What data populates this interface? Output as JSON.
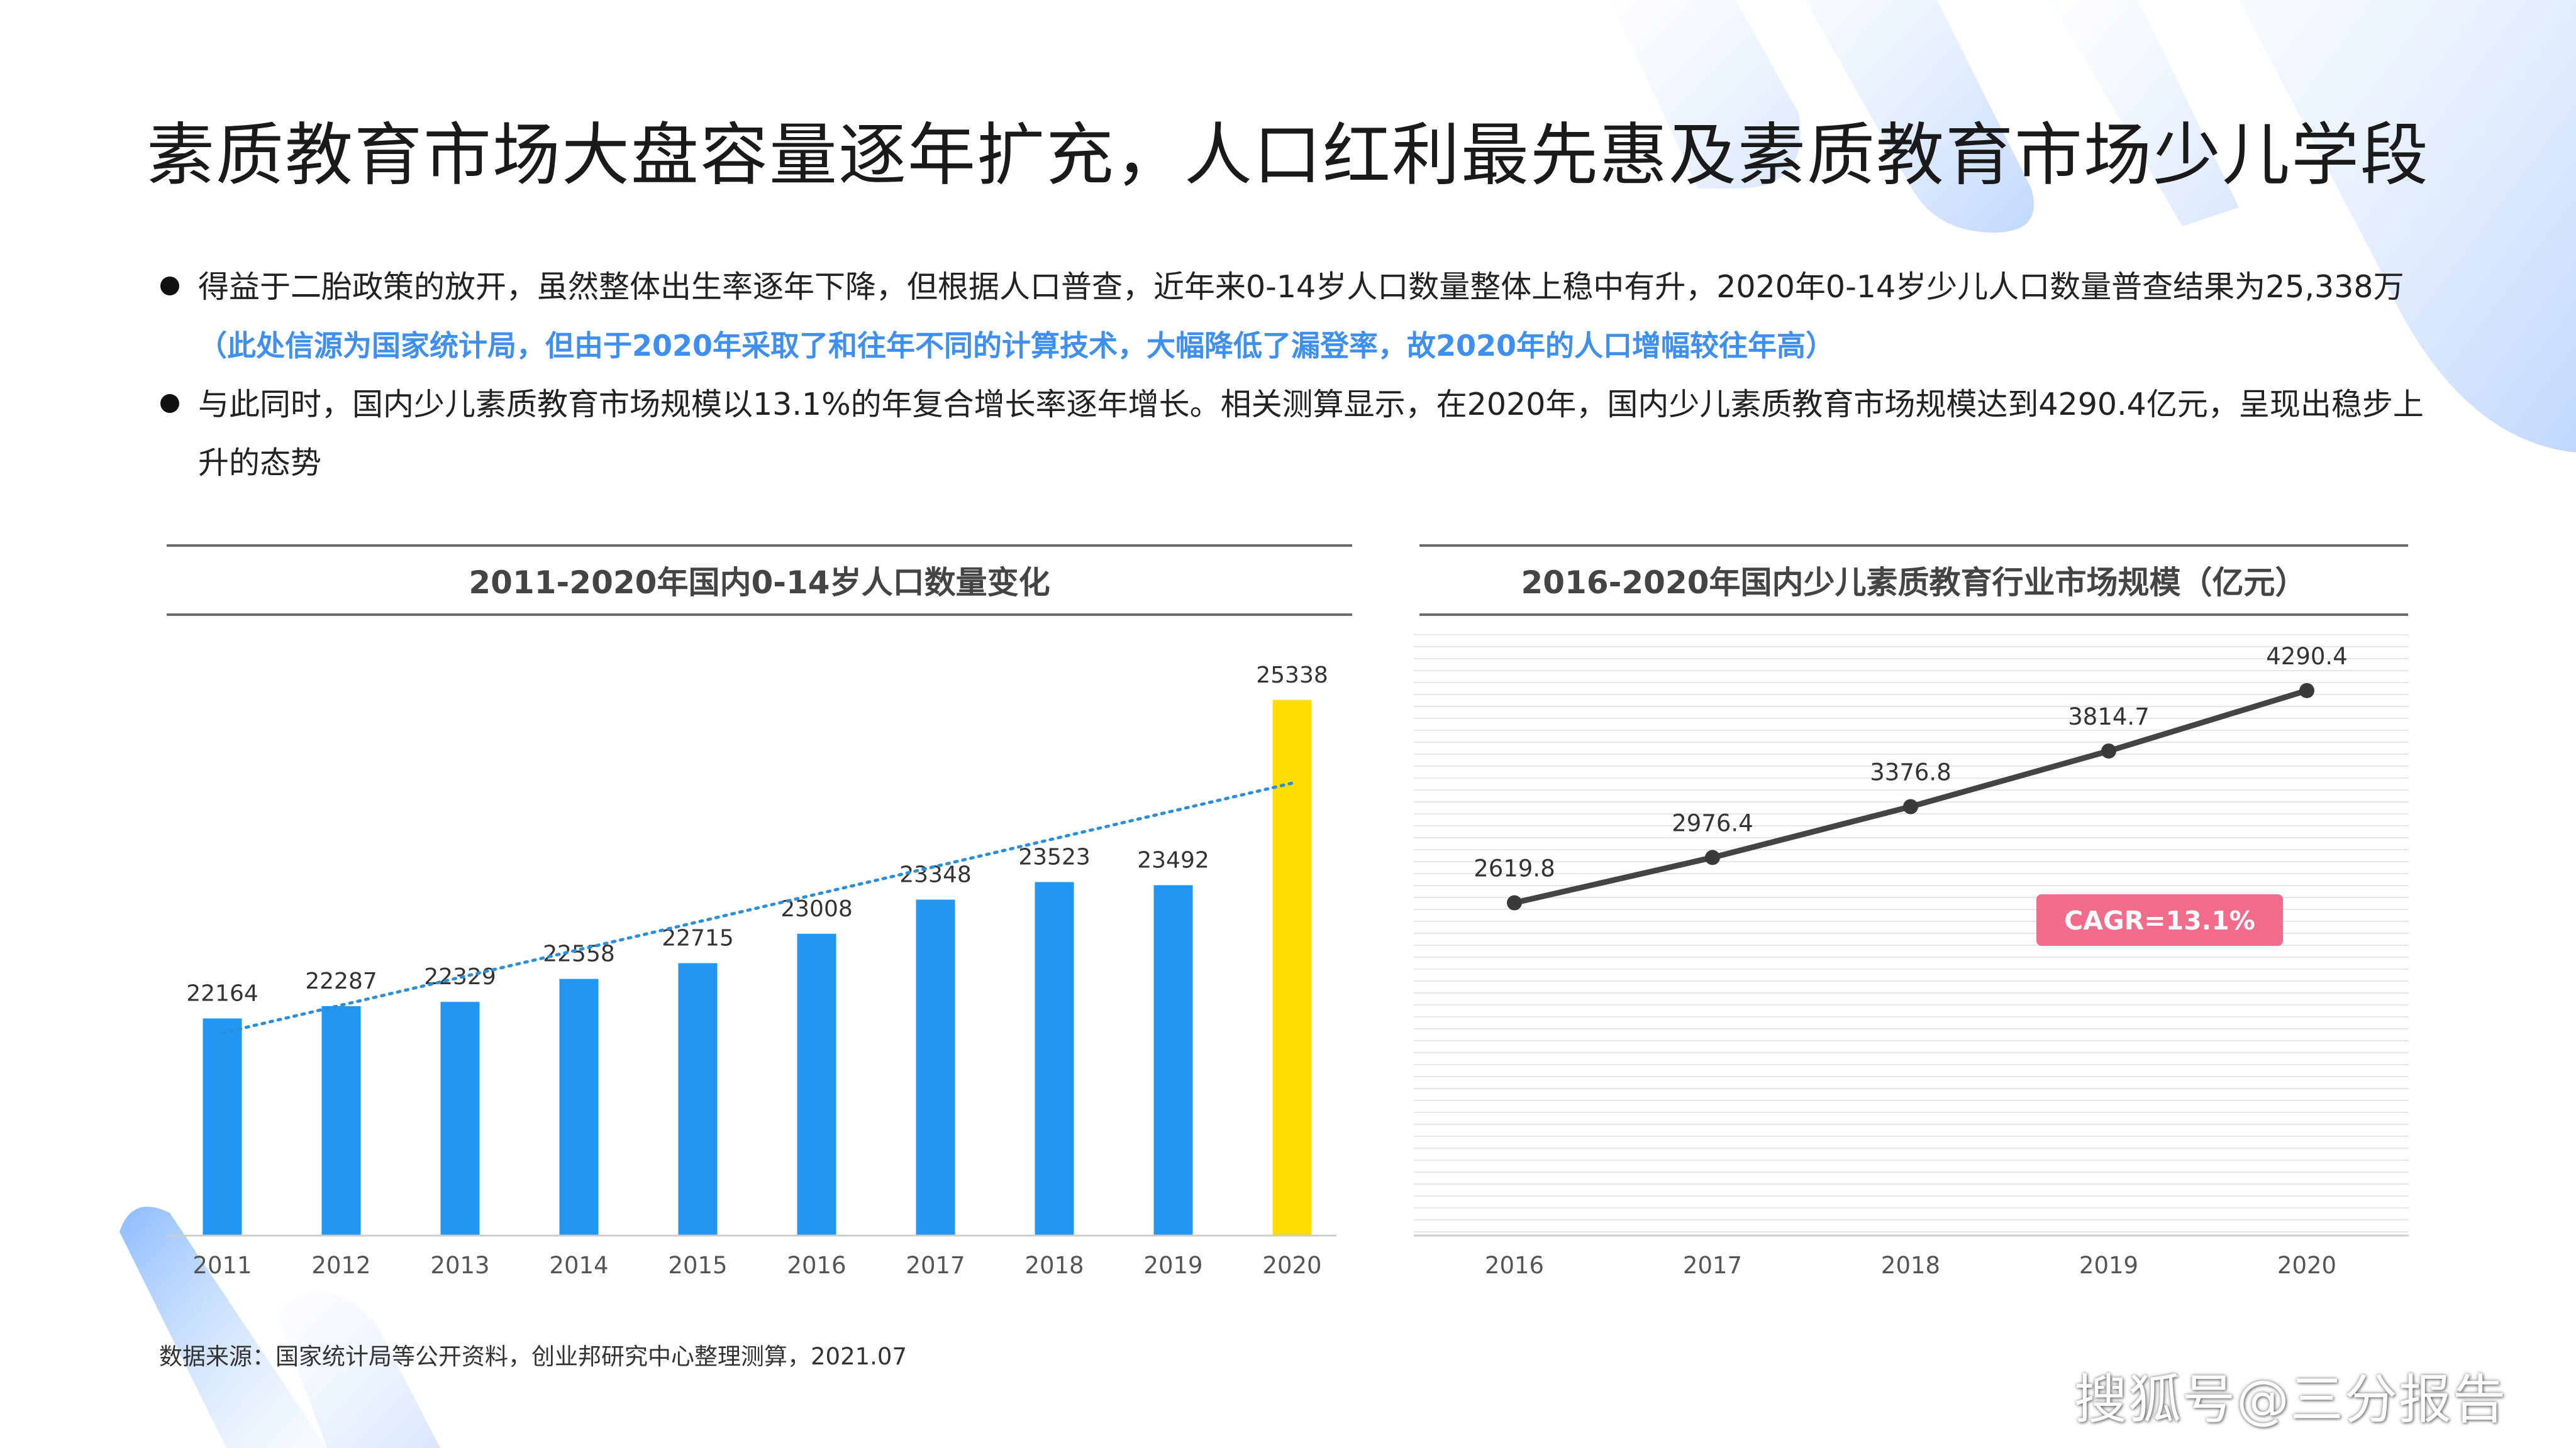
{
  "title": "素质教育市场大盘容量逐年扩充，人口红利最先惠及素质教育市场少儿学段",
  "bullets": [
    {
      "text": "得益于二胎政策的放开，虽然整体出生率逐年下降，但根据人口普查，近年来0-14岁人口数量整体上稳中有升，2020年0-14岁少儿人口数量普查结果为25,338万",
      "highlight": "（此处信源为国家统计局，但由于2020年采取了和往年不同的计算技术，大幅降低了漏登率，故2020年的人口增幅较往年高）"
    },
    {
      "text": "与此同时，国内少儿素质教育市场规模以13.1%的年复合增长率逐年增长。相关测算显示，在2020年，国内少儿素质教育市场规模达到4290.4亿元，呈现出稳步上升的态势",
      "highlight": ""
    }
  ],
  "colors": {
    "bar": "#2196f3",
    "bar_highlight": "#ffdd00",
    "trend": "#2a8fd8",
    "line": "#444444",
    "badge": "#f06c8a"
  },
  "chart_data": [
    {
      "type": "bar",
      "title": "2011-2020年国内0-14岁人口数量变化",
      "categories": [
        "2011",
        "2012",
        "2013",
        "2014",
        "2015",
        "2016",
        "2017",
        "2018",
        "2019",
        "2020"
      ],
      "values": [
        22164,
        22287,
        22329,
        22558,
        22715,
        23008,
        23348,
        23523,
        23492,
        25338
      ],
      "data_labels": [
        "22164",
        "22287",
        "22329",
        "22558",
        "22715",
        "23008",
        "23348",
        "23523",
        "23492",
        "25338"
      ],
      "highlight_category": "2020",
      "trendline": "linear dotted",
      "ylim": [
        20000,
        25800
      ],
      "grid": false
    },
    {
      "type": "line",
      "title": "2016-2020年国内少儿素质教育行业市场规模（亿元）",
      "categories": [
        "2016",
        "2017",
        "2018",
        "2019",
        "2020"
      ],
      "values": [
        2619.8,
        2976.4,
        3376.8,
        3814.7,
        4290.4
      ],
      "data_labels": [
        "2619.8",
        "2976.4",
        "3376.8",
        "3814.7",
        "4290.4"
      ],
      "annotation": "CAGR=13.1%",
      "ylim": [
        0,
        4730
      ],
      "grid": true
    }
  ],
  "source": "数据来源：国家统计局等公开资料，创业邦研究中心整理测算，2021.07",
  "watermark": "搜狐号@三分报告"
}
